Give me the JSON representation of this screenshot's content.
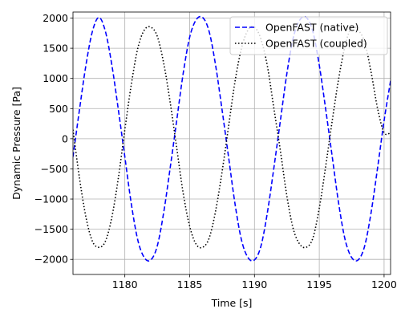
{
  "chart_data": {
    "type": "line",
    "xlabel": "Time [s]",
    "ylabel": "Dynamic Pressure [Pa]",
    "xlim": [
      1176,
      1200.5
    ],
    "ylim": [
      -2250,
      2100
    ],
    "xticks": [
      1180,
      1185,
      1190,
      1195,
      1200
    ],
    "yticks": [
      -2000,
      -1500,
      -1000,
      -500,
      0,
      500,
      1000,
      1500,
      2000
    ],
    "grid": true,
    "legend_position": "top-right",
    "series": [
      {
        "name": "OpenFAST (native)",
        "color": "#0000ff",
        "linestyle": "dashed",
        "x": [
          1176.0,
          1176.5,
          1177.0,
          1177.5,
          1178.0,
          1178.5,
          1179.0,
          1179.5,
          1180.0,
          1180.5,
          1181.0,
          1181.5,
          1182.0,
          1182.5,
          1183.0,
          1183.5,
          1184.0,
          1184.5,
          1185.0,
          1185.5,
          1186.0,
          1186.5,
          1187.0,
          1187.5,
          1188.0,
          1188.5,
          1189.0,
          1189.5,
          1190.0,
          1190.5,
          1191.0,
          1191.5,
          1192.0,
          1192.5,
          1193.0,
          1193.5,
          1194.0,
          1194.5,
          1195.0,
          1195.5,
          1196.0,
          1196.5,
          1197.0,
          1197.5,
          1198.0,
          1198.5,
          1199.0,
          1199.5,
          1200.0,
          1200.5
        ],
        "y": [
          -300,
          480,
          1220,
          1780,
          2010,
          1780,
          1220,
          480,
          -300,
          -1080,
          -1680,
          -1970,
          -2010,
          -1780,
          -1220,
          -480,
          300,
          1080,
          1680,
          1970,
          2010,
          1780,
          1220,
          480,
          -300,
          -1080,
          -1680,
          -1970,
          -2010,
          -1780,
          -1220,
          -480,
          300,
          1080,
          1680,
          1970,
          2010,
          1780,
          1220,
          480,
          -300,
          -1080,
          -1680,
          -1970,
          -2010,
          -1780,
          -1220,
          -480,
          300,
          960
        ]
      },
      {
        "name": "OpenFAST (coupled)",
        "color": "#000000",
        "linestyle": "dotted",
        "x": [
          1176.0,
          1176.5,
          1177.0,
          1177.5,
          1178.0,
          1178.5,
          1179.0,
          1179.5,
          1180.0,
          1180.5,
          1181.0,
          1181.5,
          1182.0,
          1182.5,
          1183.0,
          1183.5,
          1184.0,
          1184.5,
          1185.0,
          1185.5,
          1186.0,
          1186.5,
          1187.0,
          1187.5,
          1188.0,
          1188.5,
          1189.0,
          1189.5,
          1190.0,
          1190.5,
          1191.0,
          1191.5,
          1192.0,
          1192.5,
          1193.0,
          1193.5,
          1194.0,
          1194.5,
          1195.0,
          1195.5,
          1196.0,
          1196.5,
          1197.0,
          1197.5,
          1198.0,
          1198.5,
          1199.0,
          1199.5,
          1200.0,
          1200.5
        ],
        "y": [
          150,
          -650,
          -1300,
          -1700,
          -1800,
          -1700,
          -1300,
          -650,
          150,
          900,
          1500,
          1800,
          1850,
          1700,
          1250,
          600,
          -150,
          -900,
          -1450,
          -1750,
          -1800,
          -1650,
          -1200,
          -550,
          200,
          950,
          1500,
          1800,
          1850,
          1650,
          1200,
          500,
          -200,
          -950,
          -1500,
          -1750,
          -1800,
          -1650,
          -1150,
          -450,
          300,
          1000,
          1550,
          1850,
          1800,
          1600,
          1100,
          500,
          100,
          100
        ]
      }
    ]
  }
}
